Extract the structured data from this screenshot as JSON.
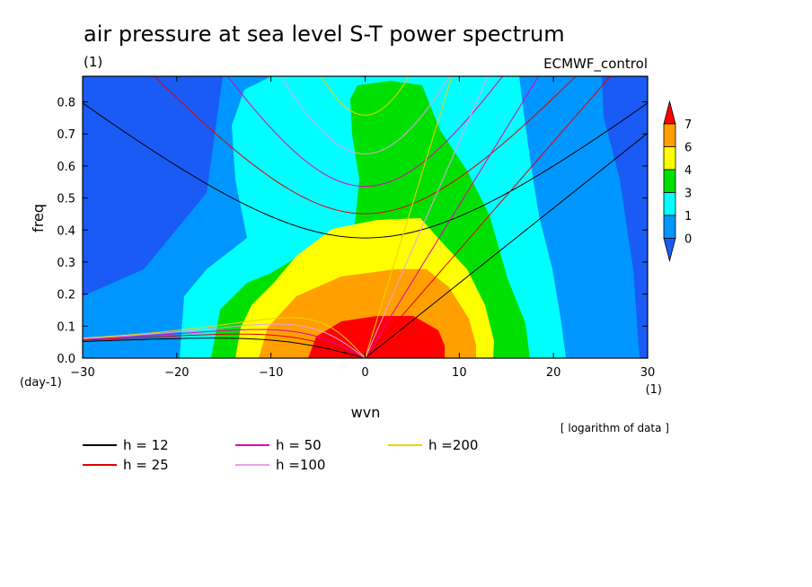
{
  "chart_data": {
    "type": "heatmap",
    "title": "air pressure at sea level S-T power spectrum",
    "subtitle_left": "(1)",
    "subtitle_right": "ECMWF_control",
    "xlabel": "wvn",
    "ylabel": "freq",
    "x_unit": "(1)",
    "y_unit": "(day-1)",
    "xlim": [
      -30,
      30
    ],
    "ylim": [
      0,
      0.88
    ],
    "xticks": [
      "-30",
      "-20",
      "-10",
      "0",
      "10",
      "20",
      "30"
    ],
    "yticks": [
      "0.0",
      "0.1",
      "0.2",
      "0.3",
      "0.4",
      "0.5",
      "0.6",
      "0.7",
      "0.8"
    ],
    "note": "[ logarithm of data ]",
    "colorbar": {
      "levels": [
        "0",
        "1",
        "3",
        "4",
        "6",
        "7"
      ],
      "colors": [
        "#1a5bf5",
        "#0096ff",
        "#00ffff",
        "#00e000",
        "#ffff00",
        "#ffa000",
        "#ff0000"
      ]
    },
    "dispersion_curves": [
      {
        "name": "h = 12",
        "color": "#000000"
      },
      {
        "name": "h = 25",
        "color": "#e00000"
      },
      {
        "name": "h = 50",
        "color": "#e000b0"
      },
      {
        "name": "h =100",
        "color": "#e8a0e8"
      },
      {
        "name": "h =200",
        "color": "#f0d000"
      }
    ]
  }
}
